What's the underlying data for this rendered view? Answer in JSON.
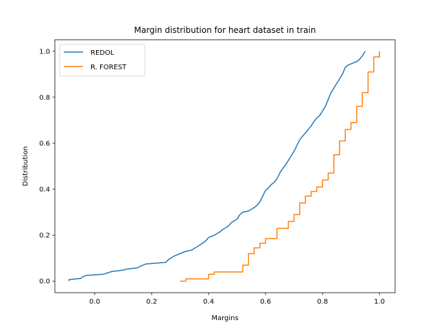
{
  "chart_data": {
    "type": "line",
    "title": "Margin distribution for heart dataset in train",
    "xlabel": "Margins",
    "ylabel": "Distribution",
    "xlim": [
      -0.14,
      1.055
    ],
    "ylim": [
      -0.05,
      1.05
    ],
    "xticks": [
      0.0,
      0.2,
      0.4,
      0.6,
      0.8,
      1.0
    ],
    "xtick_labels": [
      "0.0",
      "0.2",
      "0.4",
      "0.6",
      "0.8",
      "1.0"
    ],
    "yticks": [
      0.0,
      0.2,
      0.4,
      0.6,
      0.8,
      1.0
    ],
    "ytick_labels": [
      "0.0",
      "0.2",
      "0.4",
      "0.6",
      "0.8",
      "1.0"
    ],
    "grid": false,
    "legend_position": "upper left",
    "series": [
      {
        "name": "REDOL",
        "color": "#1f77b4",
        "step": false,
        "x": [
          -0.09,
          -0.09,
          -0.05,
          -0.04,
          -0.03,
          0.03,
          0.05,
          0.06,
          0.1,
          0.11,
          0.15,
          0.16,
          0.18,
          0.25,
          0.26,
          0.28,
          0.29,
          0.3,
          0.32,
          0.34,
          0.36,
          0.37,
          0.39,
          0.4,
          0.42,
          0.44,
          0.45,
          0.47,
          0.48,
          0.5,
          0.51,
          0.52,
          0.54,
          0.56,
          0.57,
          0.58,
          0.59,
          0.6,
          0.61,
          0.62,
          0.63,
          0.64,
          0.65,
          0.66,
          0.67,
          0.68,
          0.69,
          0.7,
          0.71,
          0.72,
          0.73,
          0.74,
          0.75,
          0.76,
          0.77,
          0.78,
          0.79,
          0.8,
          0.81,
          0.82,
          0.83,
          0.84,
          0.85,
          0.86,
          0.87,
          0.88,
          0.89,
          0.9,
          0.91,
          0.92,
          0.93,
          0.94,
          0.95
        ],
        "y": [
          0.0,
          0.007,
          0.012,
          0.02,
          0.025,
          0.03,
          0.038,
          0.042,
          0.048,
          0.052,
          0.058,
          0.065,
          0.075,
          0.082,
          0.095,
          0.11,
          0.115,
          0.12,
          0.13,
          0.135,
          0.15,
          0.158,
          0.175,
          0.19,
          0.2,
          0.215,
          0.225,
          0.24,
          0.255,
          0.27,
          0.29,
          0.3,
          0.305,
          0.32,
          0.33,
          0.345,
          0.37,
          0.395,
          0.405,
          0.42,
          0.43,
          0.445,
          0.47,
          0.49,
          0.505,
          0.525,
          0.545,
          0.565,
          0.59,
          0.615,
          0.63,
          0.645,
          0.66,
          0.675,
          0.695,
          0.71,
          0.72,
          0.74,
          0.76,
          0.79,
          0.82,
          0.84,
          0.86,
          0.88,
          0.9,
          0.93,
          0.94,
          0.945,
          0.95,
          0.955,
          0.965,
          0.98,
          1.0
        ]
      },
      {
        "name": "R. FOREST",
        "color": "#ff7f0e",
        "step": true,
        "x": [
          0.3,
          0.32,
          0.4,
          0.42,
          0.52,
          0.54,
          0.56,
          0.58,
          0.6,
          0.64,
          0.68,
          0.7,
          0.72,
          0.74,
          0.76,
          0.78,
          0.8,
          0.82,
          0.84,
          0.86,
          0.88,
          0.9,
          0.92,
          0.94,
          0.96,
          0.98,
          1.0
        ],
        "y": [
          0.0,
          0.01,
          0.03,
          0.04,
          0.07,
          0.12,
          0.145,
          0.165,
          0.185,
          0.23,
          0.26,
          0.29,
          0.34,
          0.37,
          0.39,
          0.41,
          0.44,
          0.47,
          0.55,
          0.61,
          0.66,
          0.69,
          0.76,
          0.82,
          0.91,
          0.975,
          1.0
        ]
      }
    ]
  }
}
